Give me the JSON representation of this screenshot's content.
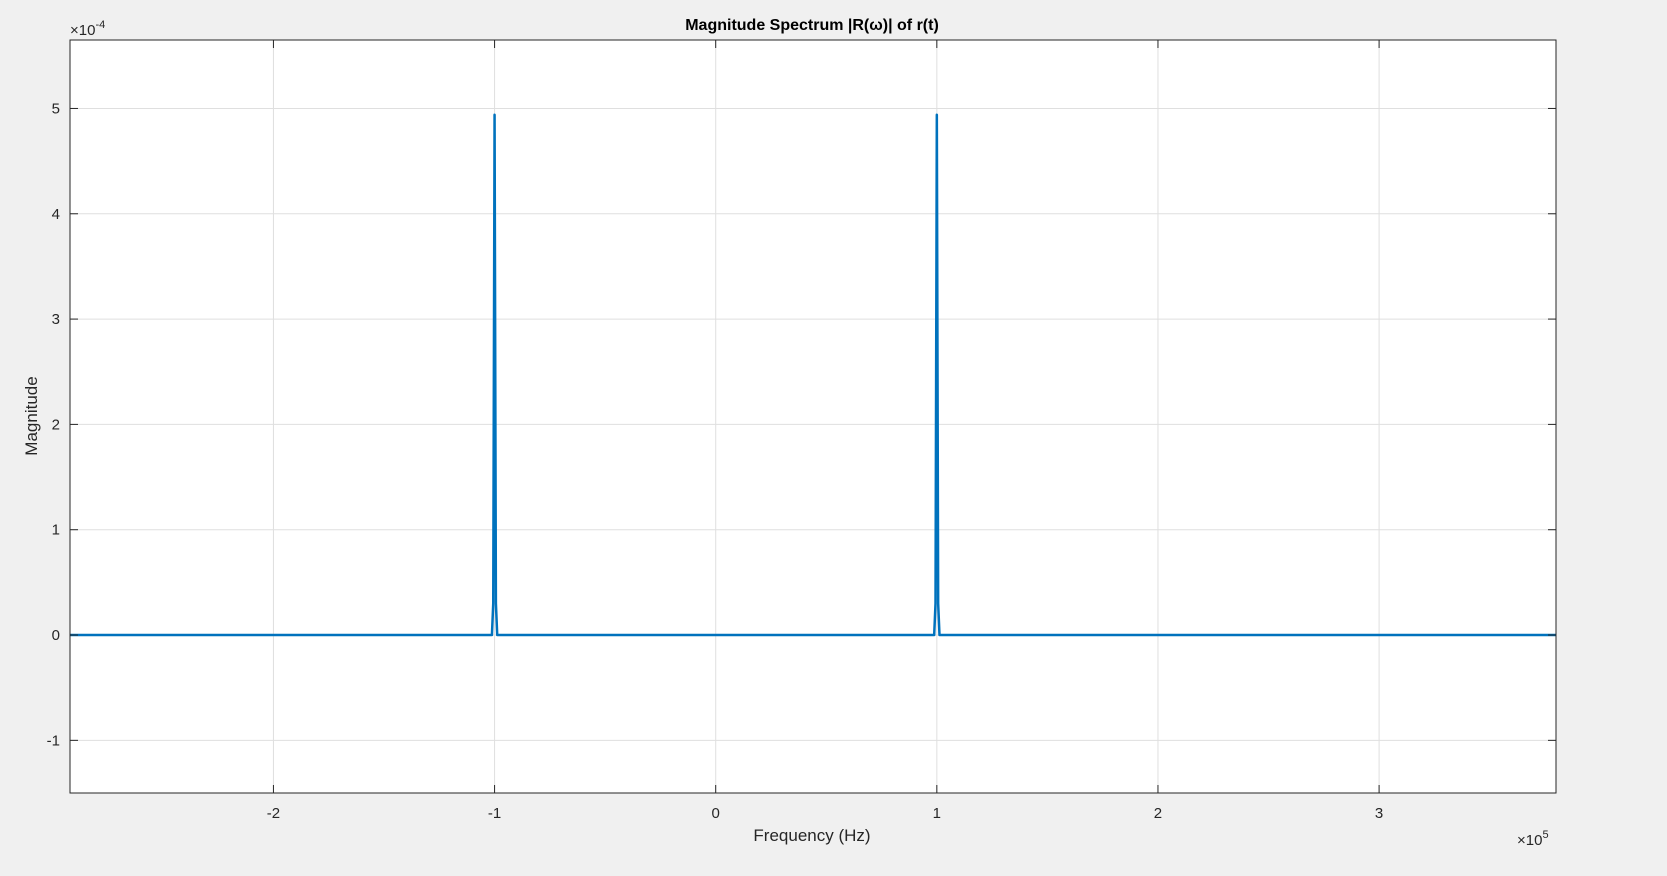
{
  "chart_data": {
    "type": "line",
    "title": "Magnitude Spectrum |R(ω)| of r(t)",
    "xlabel": "Frequency (Hz)",
    "ylabel": "Magnitude",
    "x_exponent": {
      "base": "×10",
      "power": "5"
    },
    "y_exponent": {
      "base": "×10",
      "power": "-4"
    },
    "xlim": [
      -2.92,
      3.8
    ],
    "ylim": [
      -1.5,
      5.65
    ],
    "xticks": [
      -2,
      -1,
      0,
      1,
      2,
      3
    ],
    "yticks": [
      -1,
      0,
      1,
      2,
      3,
      4,
      5
    ],
    "xtick_labels": [
      "-2",
      "-1",
      "0",
      "1",
      "2",
      "3"
    ],
    "ytick_labels": [
      "-1",
      "0",
      "1",
      "2",
      "3",
      "4",
      "5"
    ],
    "grid": true,
    "series": [
      {
        "color": "#0072BD",
        "x": [
          -2.92,
          -1.012,
          -1.006,
          -1.0,
          -0.994,
          -0.988,
          0.988,
          0.994,
          1.0,
          1.006,
          1.012,
          3.8
        ],
        "y": [
          0,
          0,
          0.3,
          4.94,
          0.3,
          0,
          0,
          0.3,
          4.94,
          0.3,
          0,
          0
        ]
      }
    ]
  }
}
